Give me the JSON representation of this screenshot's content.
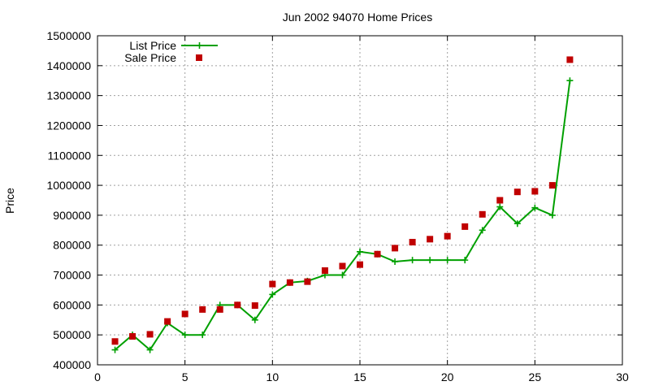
{
  "chart_data": {
    "type": "line",
    "title": "Jun 2002 94070 Home Prices",
    "xlabel": "",
    "ylabel": "Price",
    "xlim": [
      0,
      30
    ],
    "ylim": [
      400000,
      1500000
    ],
    "x_ticks": [
      0,
      5,
      10,
      15,
      20,
      25,
      30
    ],
    "y_ticks": [
      400000,
      500000,
      600000,
      700000,
      800000,
      900000,
      1000000,
      1100000,
      1200000,
      1300000,
      1400000,
      1500000
    ],
    "grid": true,
    "legend": "top-left",
    "series": [
      {
        "name": "List Price",
        "style": "linespoints",
        "color": "#00a000",
        "x": [
          1,
          2,
          3,
          4,
          5,
          6,
          7,
          8,
          9,
          10,
          11,
          12,
          13,
          14,
          15,
          16,
          17,
          18,
          19,
          20,
          21,
          22,
          23,
          24,
          25,
          26,
          27
        ],
        "y": [
          450000,
          500000,
          450000,
          540000,
          500000,
          500000,
          600000,
          600000,
          550000,
          635000,
          675000,
          680000,
          700000,
          700000,
          778000,
          770000,
          745000,
          750000,
          750000,
          750000,
          750000,
          850000,
          928000,
          872000,
          925000,
          900000,
          1350000
        ]
      },
      {
        "name": "Sale Price",
        "style": "points",
        "color": "#c00000",
        "x": [
          1,
          2,
          3,
          4,
          5,
          6,
          7,
          8,
          9,
          10,
          11,
          12,
          13,
          14,
          15,
          16,
          17,
          18,
          19,
          20,
          21,
          22,
          23,
          24,
          25,
          26,
          27
        ],
        "y": [
          478000,
          495000,
          502000,
          545000,
          570000,
          585000,
          585000,
          600000,
          598000,
          670000,
          675000,
          678000,
          715000,
          730000,
          735000,
          770000,
          790000,
          810000,
          820000,
          830000,
          862000,
          903000,
          950000,
          978000,
          980000,
          1000000,
          1420000
        ]
      }
    ]
  }
}
